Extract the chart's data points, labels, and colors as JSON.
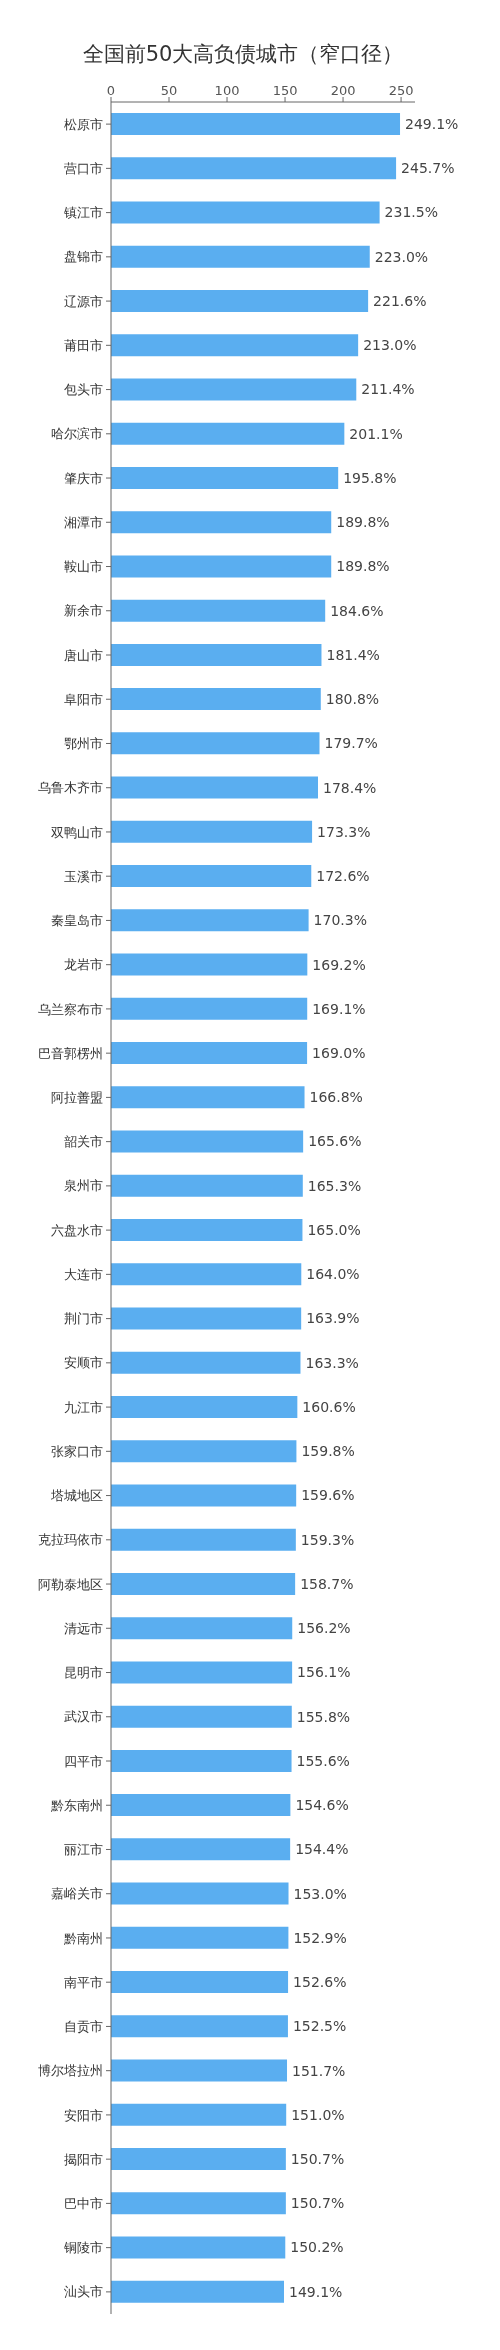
{
  "chart_data": {
    "type": "bar",
    "orientation": "horizontal",
    "title": "全国前50大高负债城市（窄口径）",
    "categories": [
      "松原市",
      "营口市",
      "镇江市",
      "盘锦市",
      "辽源市",
      "莆田市",
      "包头市",
      "哈尔滨市",
      "肇庆市",
      "湘潭市",
      "鞍山市",
      "新余市",
      "唐山市",
      "阜阳市",
      "鄂州市",
      "乌鲁木齐市",
      "双鸭山市",
      "玉溪市",
      "秦皇岛市",
      "龙岩市",
      "乌兰察布市",
      "巴音郭楞州",
      "阿拉善盟",
      "韶关市",
      "泉州市",
      "六盘水市",
      "大连市",
      "荆门市",
      "安顺市",
      "九江市",
      "张家口市",
      "塔城地区",
      "克拉玛依市",
      "阿勒泰地区",
      "清远市",
      "昆明市",
      "武汉市",
      "四平市",
      "黔东南州",
      "丽江市",
      "嘉峪关市",
      "黔南州",
      "南平市",
      "自贡市",
      "博尔塔拉州",
      "安阳市",
      "揭阳市",
      "巴中市",
      "铜陵市",
      "汕头市"
    ],
    "values": [
      249.1,
      245.7,
      231.5,
      223.0,
      221.6,
      213.0,
      211.4,
      201.1,
      195.8,
      189.8,
      189.8,
      184.6,
      181.4,
      180.8,
      179.7,
      178.4,
      173.3,
      172.6,
      170.3,
      169.2,
      169.1,
      169.0,
      166.8,
      165.6,
      165.3,
      165.0,
      164.0,
      163.9,
      163.3,
      160.6,
      159.8,
      159.6,
      159.3,
      158.7,
      156.2,
      156.1,
      155.8,
      155.6,
      154.6,
      154.4,
      153.0,
      152.9,
      152.6,
      152.5,
      151.7,
      151.0,
      150.7,
      150.7,
      150.2,
      149.1
    ],
    "value_labels": [
      "249.1%",
      "245.7%",
      "231.5%",
      "223.0%",
      "221.6%",
      "213.0%",
      "211.4%",
      "201.1%",
      "195.8%",
      "189.8%",
      "189.8%",
      "184.6%",
      "181.4%",
      "180.8%",
      "179.7%",
      "178.4%",
      "173.3%",
      "172.6%",
      "170.3%",
      "169.2%",
      "169.1%",
      "169.0%",
      "166.8%",
      "165.6%",
      "165.3%",
      "165.0%",
      "164.0%",
      "163.9%",
      "163.3%",
      "160.6%",
      "159.8%",
      "159.6%",
      "159.3%",
      "158.7%",
      "156.2%",
      "156.1%",
      "155.8%",
      "155.6%",
      "154.6%",
      "154.4%",
      "153.0%",
      "152.9%",
      "152.6%",
      "152.5%",
      "151.7%",
      "151.0%",
      "150.7%",
      "150.7%",
      "150.2%",
      "149.1%"
    ],
    "color": "#5aaef0",
    "xlim": [
      0,
      262
    ],
    "xticks": [
      0,
      50,
      100,
      150,
      200,
      250
    ]
  }
}
